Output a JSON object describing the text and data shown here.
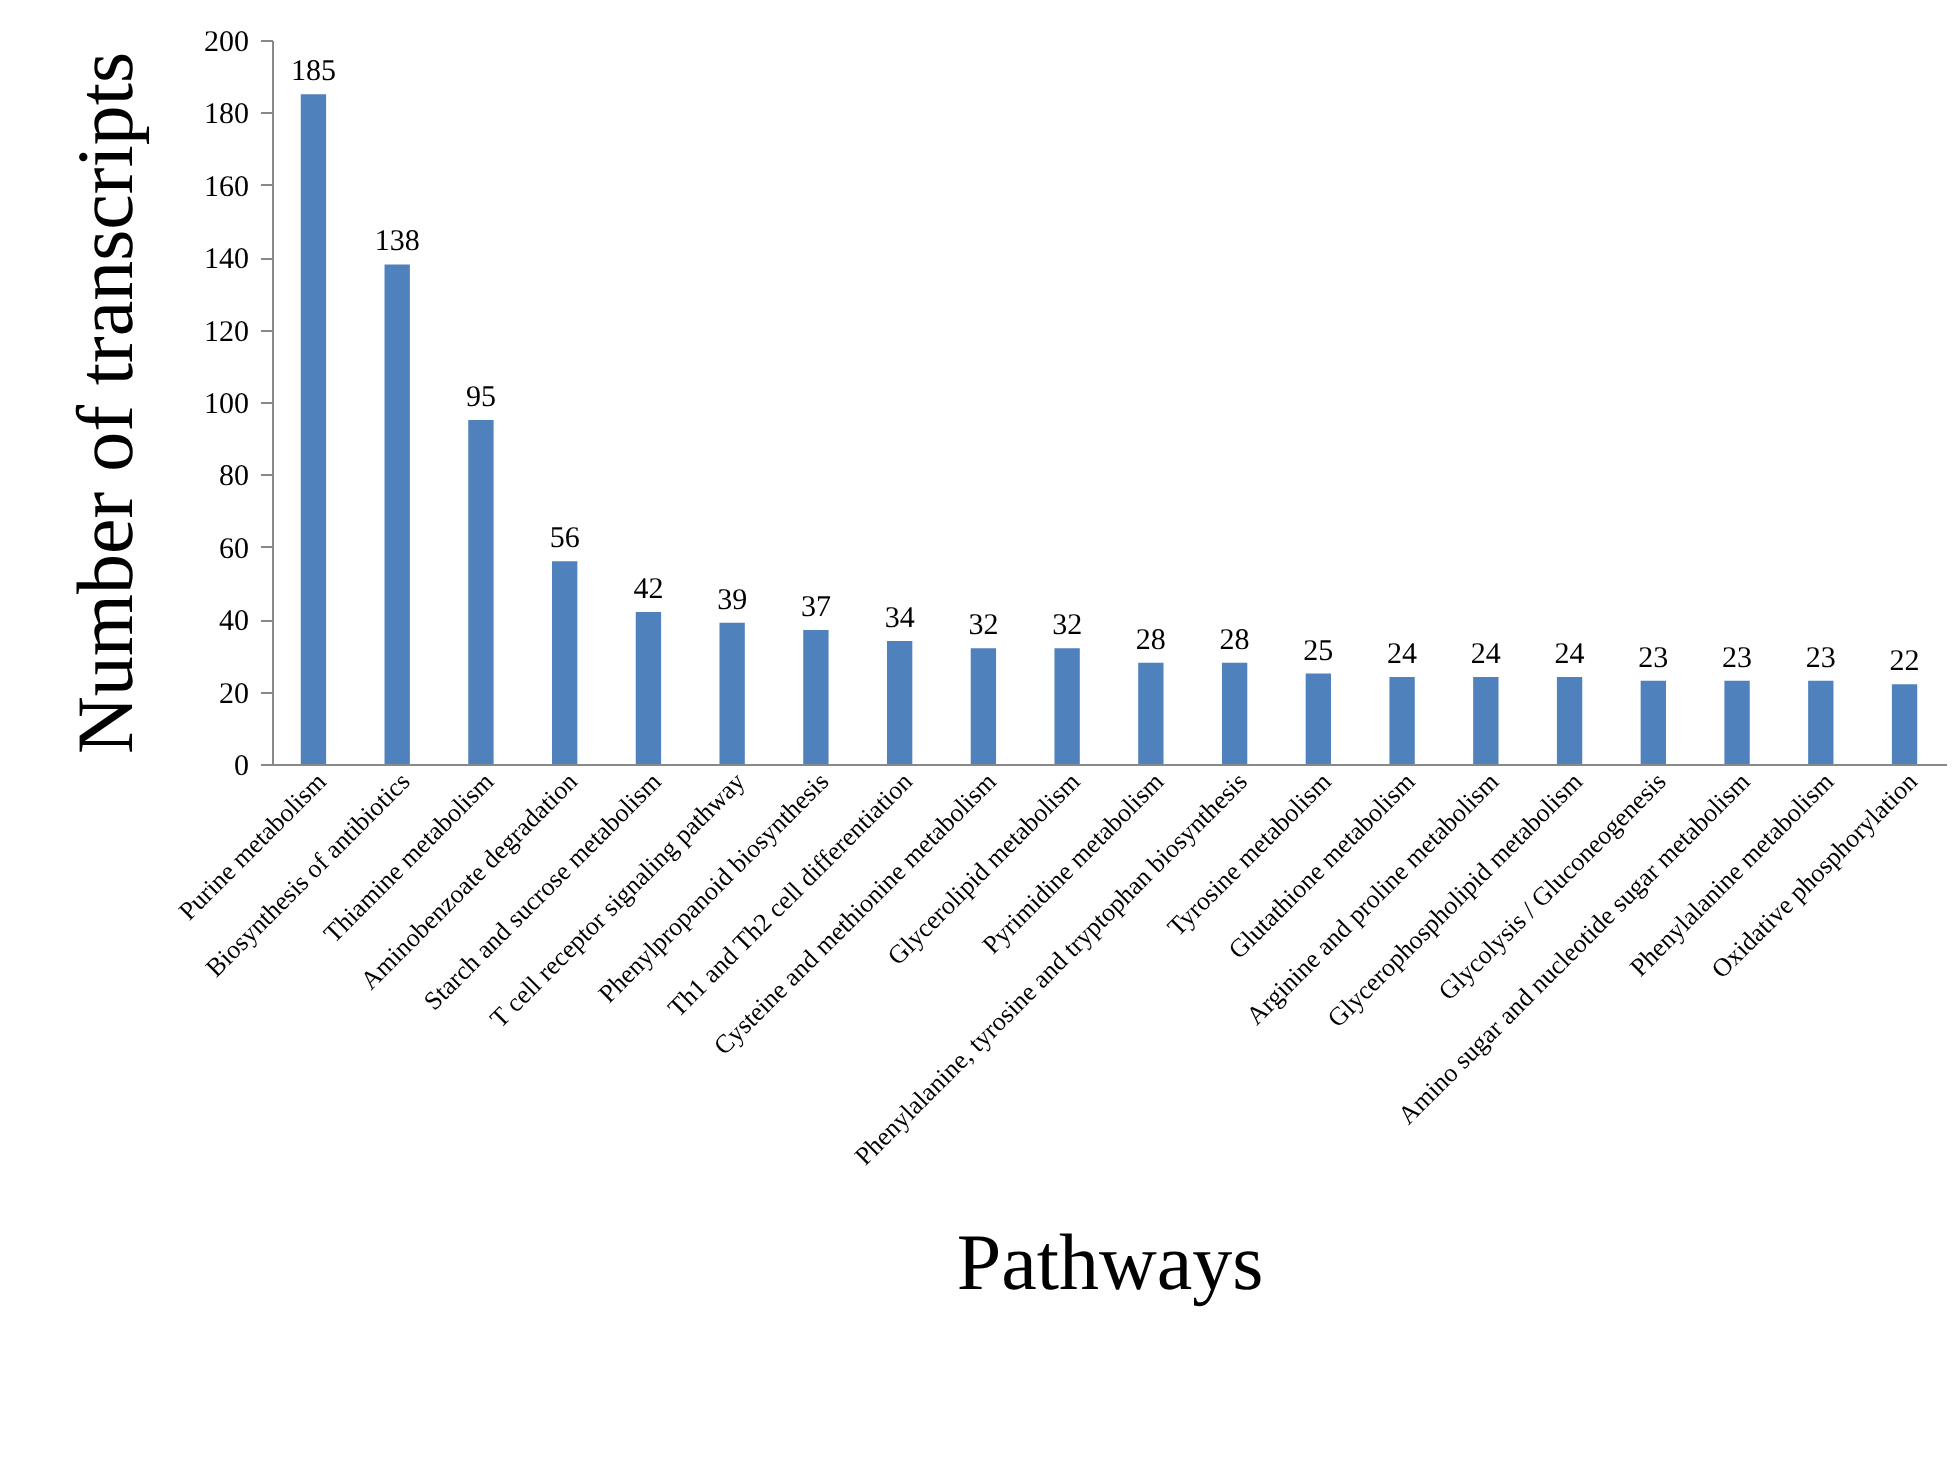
{
  "chart_data": {
    "type": "bar",
    "xlabel": "Pathways",
    "ylabel": "Number of transcripts",
    "categories": [
      "Purine metabolism",
      "Biosynthesis of antibiotics",
      "Thiamine metabolism",
      "Aminobenzoate degradation",
      "Starch and sucrose metabolism",
      "T cell receptor signaling pathway",
      "Phenylpropanoid biosynthesis",
      "Th1 and Th2 cell differentiation",
      "Cysteine and methionine metabolism",
      "Glycerolipid metabolism",
      "Pyrimidine metabolism",
      "Phenylalanine, tyrosine and tryptophan biosynthesis",
      "Tyrosine metabolism",
      "Glutathione metabolism",
      "Arginine and proline metabolism",
      "Glycerophospholipid metabolism",
      "Glycolysis / Gluconeogenesis",
      "Amino sugar and nucleotide sugar metabolism",
      "Phenylalanine metabolism",
      "Oxidative phosphorylation"
    ],
    "values": [
      185,
      138,
      95,
      56,
      42,
      39,
      37,
      34,
      32,
      32,
      28,
      28,
      25,
      24,
      24,
      24,
      23,
      23,
      23,
      22
    ],
    "color": "#4f81bd",
    "ylim": [
      0,
      200
    ],
    "yticks": [
      0,
      20,
      40,
      60,
      80,
      100,
      120,
      140,
      160,
      180,
      200
    ],
    "data_labels": true,
    "grid": false
  }
}
